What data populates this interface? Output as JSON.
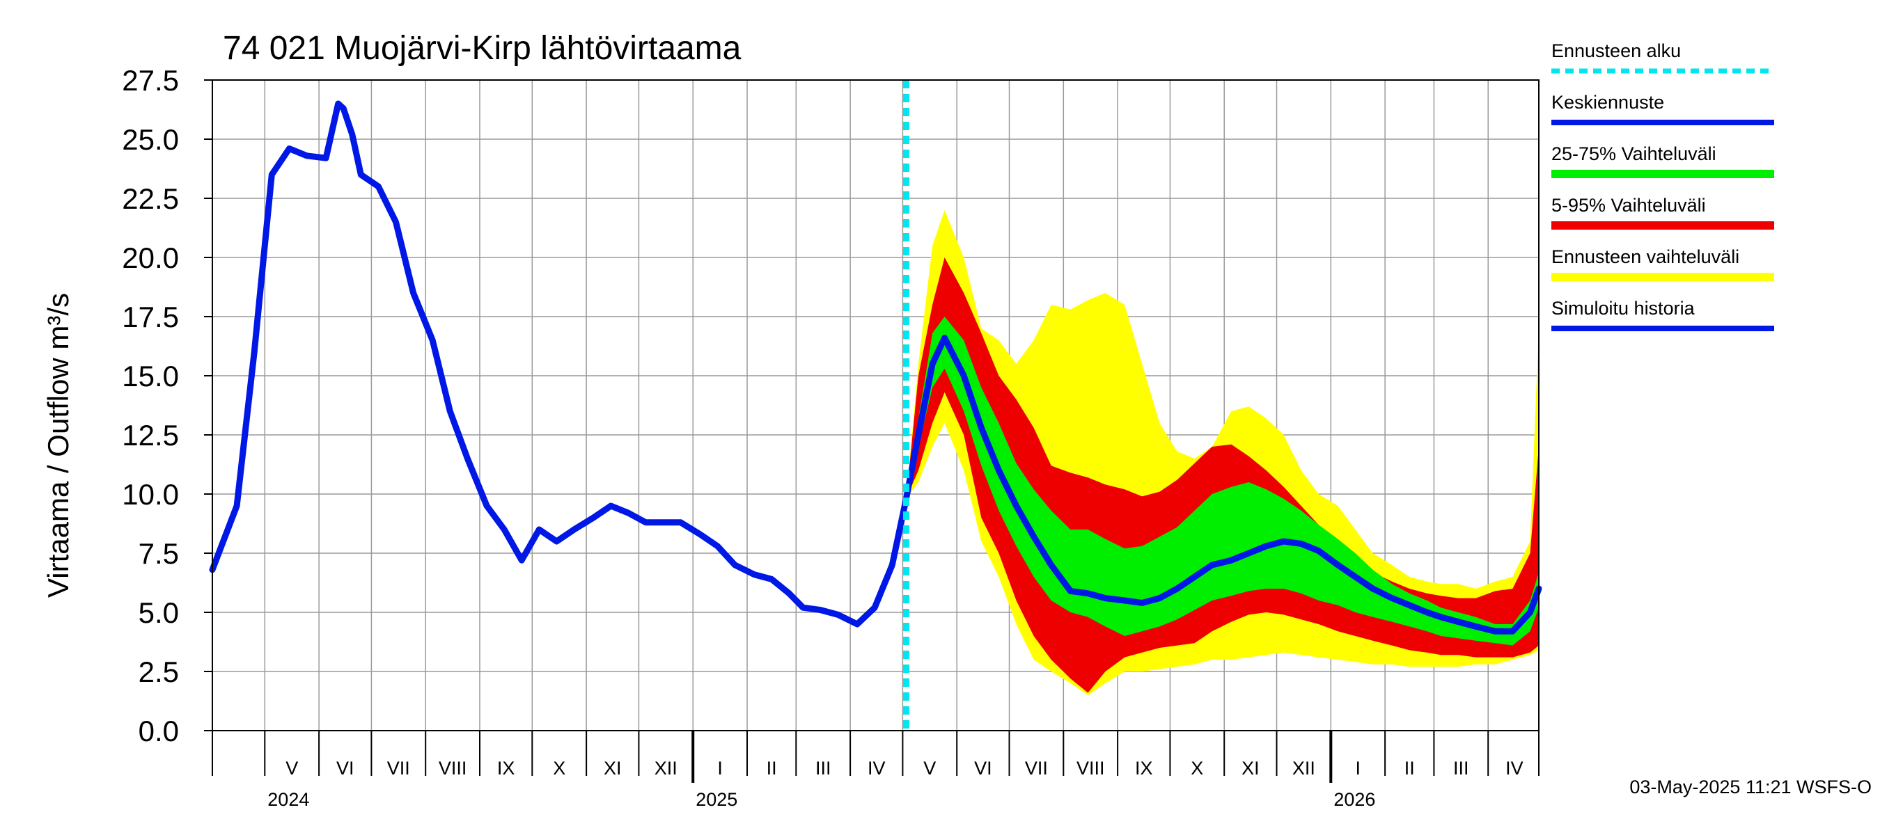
{
  "chart_data": {
    "type": "area",
    "title": "74 021 Muojärvi-Kirp lähtövirtaama",
    "ylabel": "Virtaama / Outflow    m³/s",
    "ylim": [
      0,
      27.5
    ],
    "y_ticks": [
      "0.0",
      "2.5",
      "5.0",
      "7.5",
      "10.0",
      "12.5",
      "15.0",
      "17.5",
      "20.0",
      "22.5",
      "25.0",
      "27.5"
    ],
    "x_range": [
      "2024-04-01",
      "2026-04-30"
    ],
    "month_labels": [
      "V",
      "VI",
      "VII",
      "VIII",
      "IX",
      "X",
      "XI",
      "XII",
      "I",
      "II",
      "III",
      "IV",
      "V",
      "VI",
      "VII",
      "VIII",
      "IX",
      "X",
      "XI",
      "XII",
      "I",
      "II",
      "III",
      "IV"
    ],
    "year_labels": [
      "2024",
      "2025",
      "2026"
    ],
    "forecast_start": "2025-05-03",
    "grid": true,
    "legend_position": "right",
    "legend": [
      {
        "label": "Ennusteen alku",
        "color": "#00e5ee",
        "style": "dashed"
      },
      {
        "label": "Keskiennuste",
        "color": "#0018e6",
        "style": "line"
      },
      {
        "label": "25-75% Vaihteluväli",
        "color": "#00ee00",
        "style": "band"
      },
      {
        "label": "5-95% Vaihteluväli",
        "color": "#ee0000",
        "style": "band"
      },
      {
        "label": "Ennusteen vaihteluväli",
        "color": "#ffff00",
        "style": "band"
      },
      {
        "label": "Simuloitu historia",
        "color": "#0018e6",
        "style": "line"
      }
    ],
    "series": [
      {
        "name": "Simuloitu historia",
        "x": [
          "2024-04-01",
          "2024-04-15",
          "2024-04-25",
          "2024-05-05",
          "2024-05-15",
          "2024-05-25",
          "2024-06-05",
          "2024-06-12",
          "2024-06-15",
          "2024-06-20",
          "2024-06-25",
          "2024-07-05",
          "2024-07-15",
          "2024-07-25",
          "2024-08-05",
          "2024-08-15",
          "2024-08-25",
          "2024-09-05",
          "2024-09-15",
          "2024-09-25",
          "2024-10-05",
          "2024-10-15",
          "2024-10-25",
          "2024-11-05",
          "2024-11-15",
          "2024-11-25",
          "2024-12-05",
          "2024-12-15",
          "2024-12-25",
          "2025-01-05",
          "2025-01-15",
          "2025-01-25",
          "2025-02-05",
          "2025-02-15",
          "2025-02-25",
          "2025-03-05",
          "2025-03-15",
          "2025-03-25",
          "2025-04-05",
          "2025-04-15",
          "2025-04-25",
          "2025-05-03"
        ],
        "y": [
          6.8,
          9.5,
          16,
          23.5,
          24.6,
          24.3,
          24.2,
          26.5,
          26.3,
          25.2,
          23.5,
          23.0,
          21.5,
          18.5,
          16.5,
          13.5,
          11.5,
          9.5,
          8.5,
          7.2,
          8.5,
          8.0,
          8.5,
          9.0,
          9.5,
          9.2,
          8.8,
          8.8,
          8.8,
          8.3,
          7.8,
          7.0,
          6.6,
          6.4,
          5.8,
          5.2,
          5.1,
          4.9,
          4.5,
          5.2,
          7.0,
          9.8
        ]
      },
      {
        "name": "Keskiennuste",
        "x": [
          "2025-05-03",
          "2025-05-10",
          "2025-05-18",
          "2025-05-25",
          "2025-06-05",
          "2025-06-15",
          "2025-06-25",
          "2025-07-05",
          "2025-07-15",
          "2025-07-25",
          "2025-08-05",
          "2025-08-15",
          "2025-08-25",
          "2025-09-05",
          "2025-09-15",
          "2025-09-25",
          "2025-10-05",
          "2025-10-15",
          "2025-10-25",
          "2025-11-05",
          "2025-11-15",
          "2025-11-25",
          "2025-12-05",
          "2025-12-15",
          "2025-12-25",
          "2026-01-05",
          "2026-01-15",
          "2026-01-25",
          "2026-02-05",
          "2026-02-15",
          "2026-02-25",
          "2026-03-05",
          "2026-03-15",
          "2026-03-25",
          "2026-04-05",
          "2026-04-15",
          "2026-04-25",
          "2026-04-30"
        ],
        "y": [
          9.8,
          12.5,
          15.5,
          16.6,
          15.0,
          12.8,
          11.0,
          9.5,
          8.2,
          7.0,
          5.9,
          5.8,
          5.6,
          5.5,
          5.4,
          5.6,
          6.0,
          6.5,
          7.0,
          7.2,
          7.5,
          7.8,
          8.0,
          7.9,
          7.6,
          7.0,
          6.5,
          6.0,
          5.6,
          5.3,
          5.0,
          4.8,
          4.6,
          4.4,
          4.2,
          4.2,
          5.0,
          6.0
        ]
      },
      {
        "name": "25-75% Vaihteluväli",
        "x": [
          "2025-05-03",
          "2025-05-10",
          "2025-05-18",
          "2025-05-25",
          "2025-06-05",
          "2025-06-15",
          "2025-06-25",
          "2025-07-05",
          "2025-07-15",
          "2025-07-25",
          "2025-08-05",
          "2025-08-15",
          "2025-08-25",
          "2025-09-05",
          "2025-09-15",
          "2025-09-25",
          "2025-10-05",
          "2025-10-15",
          "2025-10-25",
          "2025-11-05",
          "2025-11-15",
          "2025-11-25",
          "2025-12-05",
          "2025-12-15",
          "2025-12-25",
          "2026-01-05",
          "2026-01-15",
          "2026-01-25",
          "2026-02-05",
          "2026-02-15",
          "2026-02-25",
          "2026-03-05",
          "2026-03-15",
          "2026-03-25",
          "2026-04-05",
          "2026-04-15",
          "2026-04-25",
          "2026-04-30"
        ],
        "low": [
          9.8,
          12.0,
          14.5,
          15.3,
          13.5,
          11.2,
          9.3,
          7.8,
          6.5,
          5.5,
          5.0,
          4.8,
          4.4,
          4.0,
          4.2,
          4.4,
          4.7,
          5.1,
          5.5,
          5.7,
          5.9,
          6.0,
          6.0,
          5.8,
          5.5,
          5.3,
          5.0,
          4.8,
          4.6,
          4.4,
          4.2,
          4.0,
          3.9,
          3.8,
          3.7,
          3.6,
          4.2,
          5.2
        ],
        "high": [
          9.8,
          13.2,
          16.8,
          17.5,
          16.5,
          14.5,
          13.0,
          11.3,
          10.2,
          9.3,
          8.5,
          8.5,
          8.1,
          7.7,
          7.8,
          8.2,
          8.6,
          9.3,
          10.0,
          10.3,
          10.5,
          10.2,
          9.8,
          9.3,
          8.7,
          8.1,
          7.5,
          6.8,
          6.2,
          5.8,
          5.5,
          5.2,
          5.0,
          4.8,
          4.5,
          4.5,
          5.5,
          6.7
        ]
      },
      {
        "name": "5-95% Vaihteluväli",
        "x": [
          "2025-05-03",
          "2025-05-10",
          "2025-05-18",
          "2025-05-25",
          "2025-06-05",
          "2025-06-15",
          "2025-06-25",
          "2025-07-05",
          "2025-07-15",
          "2025-07-25",
          "2025-08-05",
          "2025-08-15",
          "2025-08-25",
          "2025-09-05",
          "2025-09-15",
          "2025-09-25",
          "2025-10-05",
          "2025-10-15",
          "2025-10-25",
          "2025-11-05",
          "2025-11-15",
          "2025-11-25",
          "2025-12-05",
          "2025-12-15",
          "2025-12-25",
          "2026-01-05",
          "2026-01-15",
          "2026-01-25",
          "2026-02-05",
          "2026-02-15",
          "2026-02-25",
          "2026-03-05",
          "2026-03-15",
          "2026-03-25",
          "2026-04-05",
          "2026-04-15",
          "2026-04-25",
          "2026-04-30"
        ],
        "low": [
          9.8,
          11.0,
          13.0,
          14.3,
          12.5,
          9.0,
          7.5,
          5.5,
          4.0,
          3.0,
          2.2,
          1.6,
          2.5,
          3.1,
          3.3,
          3.5,
          3.6,
          3.7,
          4.2,
          4.6,
          4.9,
          5.0,
          4.9,
          4.7,
          4.5,
          4.2,
          4.0,
          3.8,
          3.6,
          3.4,
          3.3,
          3.2,
          3.2,
          3.1,
          3.1,
          3.1,
          3.3,
          3.6
        ],
        "high": [
          9.8,
          15.0,
          18.0,
          20.0,
          18.5,
          16.8,
          15.0,
          14.0,
          12.8,
          11.2,
          10.9,
          10.7,
          10.4,
          10.2,
          9.9,
          10.1,
          10.6,
          11.3,
          12.0,
          12.1,
          11.6,
          11.0,
          10.3,
          9.5,
          8.7,
          8.0,
          7.3,
          6.7,
          6.3,
          6.0,
          5.8,
          5.7,
          5.6,
          5.6,
          5.9,
          6.0,
          7.5,
          12.0
        ]
      },
      {
        "name": "Ennusteen vaihteluväli",
        "x": [
          "2025-05-03",
          "2025-05-10",
          "2025-05-18",
          "2025-05-25",
          "2025-06-05",
          "2025-06-15",
          "2025-06-25",
          "2025-07-05",
          "2025-07-15",
          "2025-07-25",
          "2025-08-05",
          "2025-08-15",
          "2025-08-25",
          "2025-09-05",
          "2025-09-15",
          "2025-09-25",
          "2025-10-05",
          "2025-10-15",
          "2025-10-25",
          "2025-11-05",
          "2025-11-15",
          "2025-11-25",
          "2025-12-05",
          "2025-12-15",
          "2025-12-25",
          "2026-01-05",
          "2026-01-15",
          "2026-01-25",
          "2026-02-05",
          "2026-02-15",
          "2026-02-25",
          "2026-03-05",
          "2026-03-15",
          "2026-03-25",
          "2026-04-05",
          "2026-04-15",
          "2026-04-25",
          "2026-04-30"
        ],
        "low": [
          9.8,
          10.5,
          12.0,
          13.0,
          11.0,
          8.0,
          6.5,
          4.5,
          3.0,
          2.5,
          2.0,
          1.5,
          2.0,
          2.5,
          2.5,
          2.6,
          2.7,
          2.8,
          3.0,
          3.0,
          3.1,
          3.2,
          3.3,
          3.2,
          3.1,
          3.0,
          2.9,
          2.8,
          2.8,
          2.7,
          2.7,
          2.7,
          2.7,
          2.8,
          2.8,
          3.0,
          3.2,
          3.4
        ],
        "high": [
          9.8,
          15.5,
          20.5,
          22.0,
          20.0,
          17.0,
          16.5,
          15.5,
          16.5,
          18.0,
          17.8,
          18.2,
          18.5,
          18.0,
          15.5,
          13.0,
          11.8,
          11.5,
          12.0,
          13.5,
          13.7,
          13.2,
          12.5,
          11.0,
          10.0,
          9.5,
          8.5,
          7.5,
          7.0,
          6.5,
          6.3,
          6.2,
          6.2,
          6.0,
          6.3,
          6.5,
          8.0,
          17.0
        ]
      }
    ]
  },
  "footer": "03-May-2025 11:21 WSFS-O"
}
